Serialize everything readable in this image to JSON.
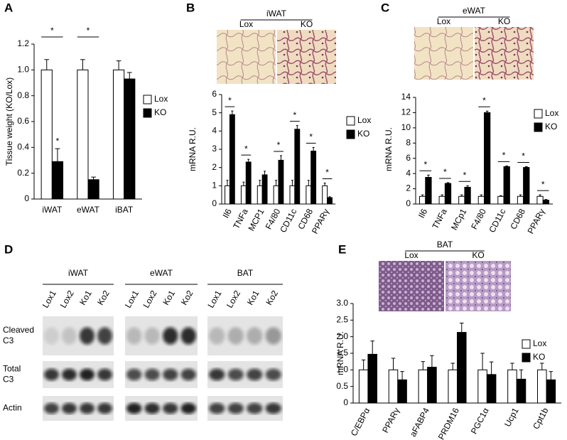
{
  "chart_data": [
    {
      "type": "bar",
      "panel": "A",
      "ylabel": "Tissue weight (KO/Lox)",
      "categories": [
        "iWAT",
        "eWAT",
        "iBAT"
      ],
      "series": [
        {
          "name": "Lox",
          "color": "#ffffff",
          "values": [
            1.0,
            1.0,
            1.0
          ],
          "errors": [
            0.08,
            0.08,
            0.07
          ]
        },
        {
          "name": "KO",
          "color": "#000000",
          "values": [
            0.29,
            0.15,
            0.93
          ],
          "errors": [
            0.1,
            0.02,
            0.05
          ]
        }
      ],
      "ylim": [
        0,
        1.2
      ],
      "yticks": [
        0,
        {
          "value": 0.2,
          "label": "0.2"
        },
        {
          "value": 0.4,
          "label": "0.4"
        },
        {
          "value": 0.6,
          "label": "0.6"
        },
        {
          "value": 0.8,
          "label": "0.8"
        },
        {
          "value": 1.0,
          "label": "1.0"
        },
        {
          "value": 1.2,
          "label": "1.2"
        }
      ],
      "annotations": [
        "*",
        "*",
        "*"
      ]
    },
    {
      "type": "bar",
      "panel": "B",
      "ylabel": "mRNA R.U.",
      "image_header": "iWAT",
      "image_labels": [
        "Lox",
        "KO"
      ],
      "categories": [
        "Il6",
        "TNFa",
        "MCP1",
        "F4/80",
        "CD11c",
        "CD68",
        "PPARγ"
      ],
      "series": [
        {
          "name": "Lox",
          "color": "#ffffff",
          "values": [
            1,
            1,
            1,
            1,
            1,
            1,
            1
          ],
          "errors": [
            0.3,
            0.2,
            0.3,
            0.3,
            0.3,
            0.3,
            0.15
          ]
        },
        {
          "name": "KO",
          "color": "#000000",
          "values": [
            4.9,
            2.3,
            1.6,
            2.4,
            4.1,
            2.9,
            0.35
          ],
          "errors": [
            0.2,
            0.15,
            0.2,
            0.25,
            0.2,
            0.2,
            0.05
          ]
        }
      ],
      "ylim": [
        0,
        6
      ],
      "yticks": [
        0,
        1,
        2,
        3,
        4,
        5,
        6
      ],
      "annotations": [
        "*",
        "*",
        "*",
        "*",
        "*",
        "*"
      ]
    },
    {
      "type": "bar",
      "panel": "C",
      "ylabel": "mRNA R.U.",
      "image_header": "eWAT",
      "image_labels": [
        "Lox",
        "KO"
      ],
      "categories": [
        "Il6",
        "TNFa",
        "MCp1",
        "F4/80",
        "CD11c",
        "CD68",
        "PPARγ"
      ],
      "series": [
        {
          "name": "Lox",
          "color": "#ffffff",
          "values": [
            1,
            1,
            1,
            1,
            1,
            1,
            1
          ],
          "errors": [
            0.2,
            0.2,
            0.2,
            0.2,
            0.1,
            0.2,
            0.2
          ]
        },
        {
          "name": "KO",
          "color": "#000000",
          "values": [
            3.5,
            2.7,
            2.2,
            12,
            4.9,
            4.8,
            0.5
          ],
          "errors": [
            0.3,
            0.1,
            0.2,
            0.2,
            0.1,
            0.1,
            0.1
          ]
        }
      ],
      "ylim": [
        0,
        14
      ],
      "yticks": [
        0,
        2,
        4,
        6,
        8,
        10,
        12,
        14
      ],
      "annotations": [
        "*",
        "*",
        "*",
        "*",
        "*",
        "*",
        "*"
      ]
    },
    {
      "type": "bar",
      "panel": "E",
      "ylabel": "mRNA R.U.",
      "image_header": "BAT",
      "image_labels": [
        "Lox",
        "KO"
      ],
      "categories": [
        "C/EBPα",
        "PPARγ",
        "aFABP4",
        "PRDM16",
        "PGC1α",
        "Ucp1",
        "Cpt1b"
      ],
      "series": [
        {
          "name": "Lox",
          "color": "#ffffff",
          "values": [
            1,
            1,
            1,
            1,
            1,
            1,
            1
          ],
          "errors": [
            0.3,
            0.35,
            0.25,
            0.2,
            0.5,
            0.2,
            0.2
          ]
        },
        {
          "name": "KO",
          "color": "#000000",
          "values": [
            1.47,
            0.7,
            1.08,
            2.13,
            0.86,
            0.72,
            0.7
          ],
          "errors": [
            0.4,
            0.25,
            0.35,
            0.28,
            0.38,
            0.28,
            0.25
          ]
        }
      ],
      "ylim": [
        0,
        3.0
      ],
      "yticks": [
        0,
        {
          "value": 0.5,
          "label": "0.5"
        },
        {
          "value": 1.0,
          "label": "1.0"
        },
        {
          "value": 1.5,
          "label": "1.5"
        },
        {
          "value": 2.0,
          "label": "2.0"
        },
        {
          "value": 2.5,
          "label": "2.5"
        },
        {
          "value": 3.0,
          "label": "3.0"
        }
      ],
      "annotations": []
    }
  ],
  "blot": {
    "panel": "D",
    "tissues": [
      {
        "name": "iWAT",
        "lanes": [
          "Lox1",
          "Lox2",
          "Ko1",
          "Ko2"
        ]
      },
      {
        "name": "eWAT",
        "lanes": [
          "Lox1",
          "Lox2",
          "Ko1",
          "Ko2"
        ]
      },
      {
        "name": "BAT",
        "lanes": [
          "Lox1",
          "Lox2",
          "Ko1",
          "Ko2"
        ]
      }
    ],
    "rows": [
      [
        "Cleaved",
        "C3"
      ],
      [
        "Total",
        "C3"
      ],
      [
        "Actin"
      ]
    ]
  }
}
